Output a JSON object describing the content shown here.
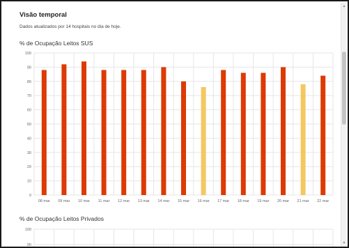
{
  "panel": {
    "title": "Visão temporal",
    "subtitle": "Dados atualizados por 14 hospitais no dia de hoje."
  },
  "colors": {
    "bar_primary": "#dd3a04",
    "bar_highlight": "#f4c761",
    "grid": "#e6e6e6",
    "axis_text": "#666666"
  },
  "chart_data": [
    {
      "type": "bar",
      "title": "% de Ocupação Leitos SUS",
      "categories": [
        "08 mar",
        "09 mar",
        "10 mar",
        "11 mar",
        "12 mar",
        "13 mar",
        "14 mar",
        "15 mar",
        "16 mar",
        "17 mar",
        "18 mar",
        "19 mar",
        "20 mar",
        "21 mar",
        "22 mar"
      ],
      "values": [
        88,
        92,
        94,
        88,
        88,
        88,
        90,
        80,
        76,
        88,
        86,
        86,
        90,
        78,
        84
      ],
      "highlighted": [
        false,
        false,
        false,
        false,
        false,
        false,
        false,
        false,
        true,
        false,
        false,
        false,
        false,
        true,
        false
      ],
      "yticks": [
        0,
        10,
        20,
        30,
        40,
        50,
        60,
        70,
        80,
        90,
        100
      ],
      "ylim": [
        0,
        100
      ],
      "grid": true
    },
    {
      "type": "bar",
      "title": "% de Ocupação Leitos Privados",
      "categories": [],
      "values": [],
      "yticks": [
        90,
        100
      ],
      "ylim": [
        0,
        100
      ],
      "grid": true
    }
  ],
  "scrollbar": {
    "up_glyph": "▲",
    "down_glyph": "▼"
  }
}
